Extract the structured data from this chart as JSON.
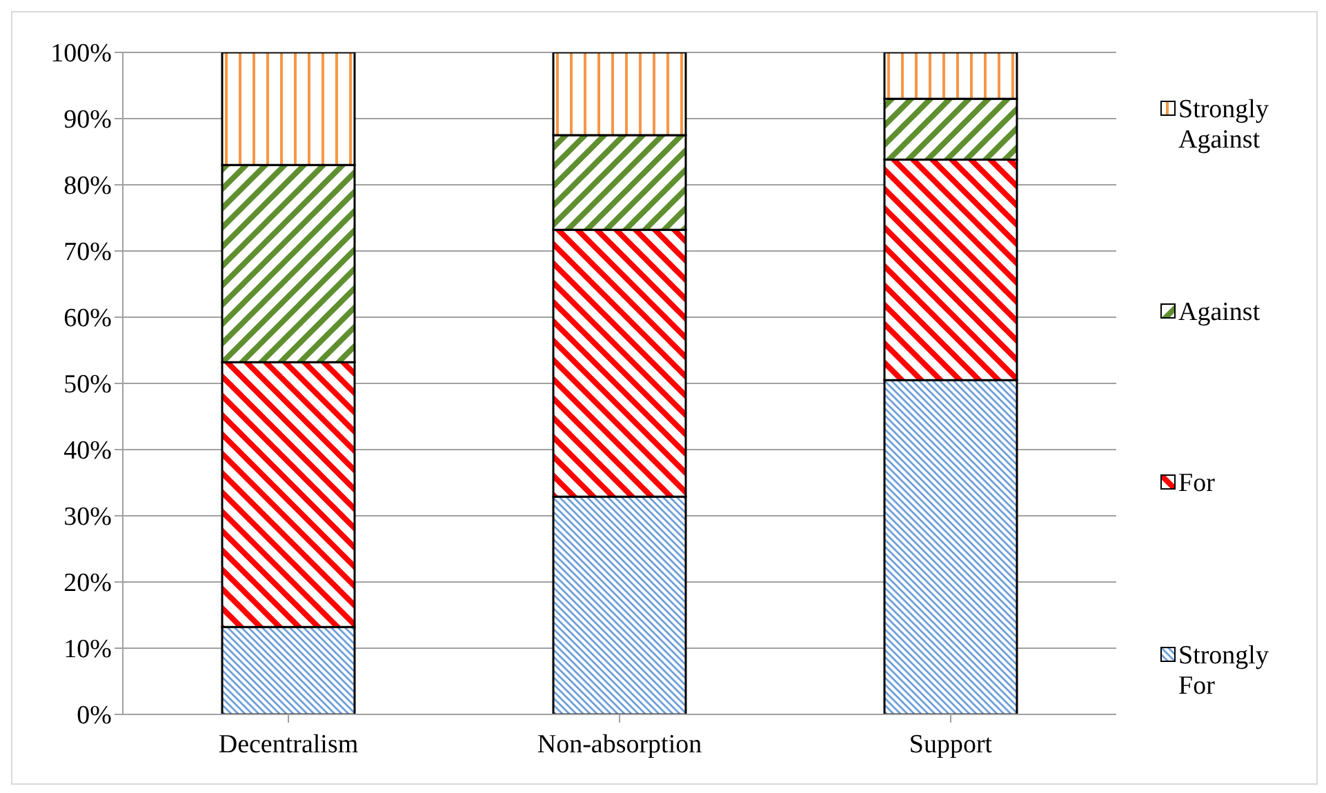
{
  "chart_data": {
    "type": "bar",
    "stacked": true,
    "categories": [
      "Decentralism",
      "Non-absorption",
      "Support"
    ],
    "series": [
      {
        "name": "Strongly For",
        "color": "#6f9fd8",
        "values": [
          13.2,
          32.9,
          50.5
        ]
      },
      {
        "name": "For",
        "color": "#ff0000",
        "values": [
          40.0,
          40.3,
          33.3
        ]
      },
      {
        "name": "Against",
        "color": "#5f8f2f",
        "values": [
          29.8,
          14.3,
          9.2
        ]
      },
      {
        "name": "Strongly Against",
        "color": "#f79646",
        "values": [
          17.0,
          12.5,
          7.0
        ]
      }
    ],
    "ylim": [
      0,
      100
    ],
    "yticks": [
      {
        "value": 0,
        "label": "0%"
      },
      {
        "value": 10,
        "label": "10%"
      },
      {
        "value": 20,
        "label": "20%"
      },
      {
        "value": 30,
        "label": "30%"
      },
      {
        "value": 40,
        "label": "40%"
      },
      {
        "value": 50,
        "label": "50%"
      },
      {
        "value": 60,
        "label": "60%"
      },
      {
        "value": 70,
        "label": "70%"
      },
      {
        "value": 80,
        "label": "80%"
      },
      {
        "value": 90,
        "label": "90%"
      },
      {
        "value": 100,
        "label": "100%"
      }
    ],
    "grid": "y",
    "legend": "right"
  }
}
